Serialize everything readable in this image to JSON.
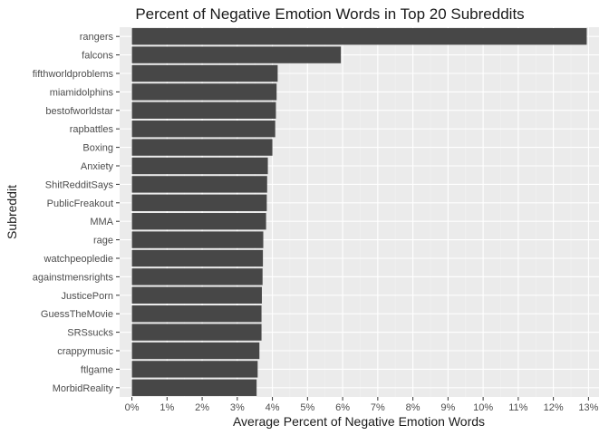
{
  "chart_data": {
    "type": "bar",
    "orientation": "horizontal",
    "title": "Percent of Negative Emotion Words in Top 20 Subreddits",
    "xlabel": "Average Percent of Negative Emotion Words",
    "ylabel": "Subreddit",
    "categories": [
      "rangers",
      "falcons",
      "fifthworldproblems",
      "miamidolphins",
      "bestofworldstar",
      "rapbattles",
      "Boxing",
      "Anxiety",
      "ShitRedditSays",
      "PublicFreakout",
      "MMA",
      "rage",
      "watchpeopledie",
      "againstmensrights",
      "JusticePorn",
      "GuessTheMovie",
      "SRSsucks",
      "crappymusic",
      "ftlgame",
      "MorbidReality"
    ],
    "values": [
      12.95,
      5.95,
      4.15,
      4.12,
      4.1,
      4.08,
      4.0,
      3.87,
      3.85,
      3.84,
      3.82,
      3.74,
      3.73,
      3.72,
      3.7,
      3.69,
      3.69,
      3.63,
      3.58,
      3.55
    ],
    "xlim": [
      -0.35,
      13.3
    ],
    "x_ticks": [
      0,
      1,
      2,
      3,
      4,
      5,
      6,
      7,
      8,
      9,
      10,
      11,
      12,
      13
    ],
    "x_tick_labels": [
      "0%",
      "1%",
      "2%",
      "3%",
      "4%",
      "5%",
      "6%",
      "7%",
      "8%",
      "9%",
      "10%",
      "11%",
      "12%",
      "13%"
    ],
    "grid": true,
    "colors": {
      "bar": "#474747",
      "panel": "#ebebeb",
      "grid": "#ffffff"
    }
  }
}
